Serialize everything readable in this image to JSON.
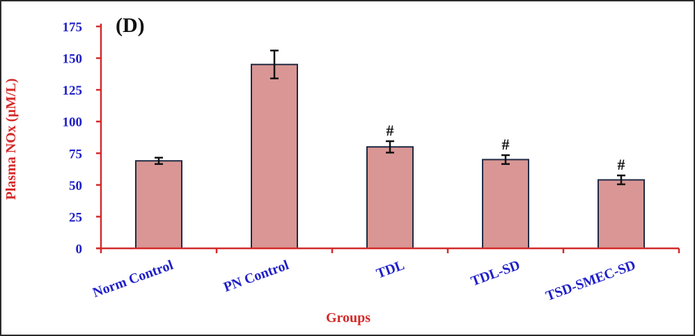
{
  "chart_data": {
    "type": "bar",
    "title": "(D)",
    "xlabel": "Groups",
    "ylabel": "Plasma NOx (µM/L)",
    "ylim": [
      0,
      175
    ],
    "yticks": [
      "0",
      "25",
      "50",
      "75",
      "100",
      "125",
      "150",
      "175"
    ],
    "categories": [
      "Norm Control",
      "PN Control",
      "TDL",
      "TDL-SD",
      "TSD-SMEC-SD"
    ],
    "values": [
      69,
      145,
      80,
      70,
      54
    ],
    "errors": [
      2.5,
      11,
      4.5,
      3.5,
      3.5
    ],
    "annotations": [
      "",
      "",
      "#",
      "#",
      "#"
    ],
    "grid": false,
    "legend": "none",
    "colors": {
      "bar_fill": "#d99694",
      "bar_stroke": "#1f2a44",
      "axis": "#d42a2a",
      "tick_text": "#1f1fc8",
      "axis_title": "#d42a2a"
    }
  }
}
